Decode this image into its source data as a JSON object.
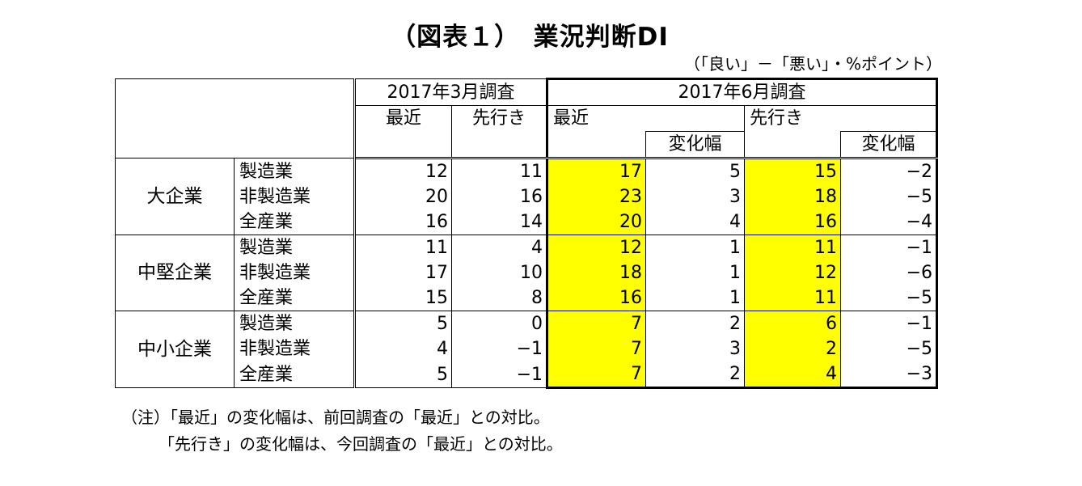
{
  "title": "（図表１）　業況判断DI",
  "unit": "（「良い」－「悪い」・%ポイント）",
  "headers": {
    "period_march": "2017年3月調査",
    "period_june": "2017年6月調査",
    "recent": "最近",
    "outlook": "先行き",
    "change": "変化幅"
  },
  "groups": [
    {
      "name": "大企業",
      "rows": [
        {
          "industry": "製造業",
          "mar_recent": "12",
          "mar_outlook": "11",
          "jun_recent": "17",
          "jun_recent_change": "5",
          "jun_outlook": "15",
          "jun_outlook_change": "−2"
        },
        {
          "industry": "非製造業",
          "mar_recent": "20",
          "mar_outlook": "16",
          "jun_recent": "23",
          "jun_recent_change": "3",
          "jun_outlook": "18",
          "jun_outlook_change": "−5"
        },
        {
          "industry": "全産業",
          "mar_recent": "16",
          "mar_outlook": "14",
          "jun_recent": "20",
          "jun_recent_change": "4",
          "jun_outlook": "16",
          "jun_outlook_change": "−4"
        }
      ]
    },
    {
      "name": "中堅企業",
      "rows": [
        {
          "industry": "製造業",
          "mar_recent": "11",
          "mar_outlook": "4",
          "jun_recent": "12",
          "jun_recent_change": "1",
          "jun_outlook": "11",
          "jun_outlook_change": "−1"
        },
        {
          "industry": "非製造業",
          "mar_recent": "17",
          "mar_outlook": "10",
          "jun_recent": "18",
          "jun_recent_change": "1",
          "jun_outlook": "12",
          "jun_outlook_change": "−6"
        },
        {
          "industry": "全産業",
          "mar_recent": "15",
          "mar_outlook": "8",
          "jun_recent": "16",
          "jun_recent_change": "1",
          "jun_outlook": "11",
          "jun_outlook_change": "−5"
        }
      ]
    },
    {
      "name": "中小企業",
      "rows": [
        {
          "industry": "製造業",
          "mar_recent": "5",
          "mar_outlook": "0",
          "jun_recent": "7",
          "jun_recent_change": "2",
          "jun_outlook": "6",
          "jun_outlook_change": "−1"
        },
        {
          "industry": "非製造業",
          "mar_recent": "4",
          "mar_outlook": "−1",
          "jun_recent": "7",
          "jun_recent_change": "3",
          "jun_outlook": "2",
          "jun_outlook_change": "−5"
        },
        {
          "industry": "全産業",
          "mar_recent": "5",
          "mar_outlook": "−1",
          "jun_recent": "7",
          "jun_recent_change": "2",
          "jun_outlook": "4",
          "jun_outlook_change": "−3"
        }
      ]
    }
  ],
  "notes": [
    "（注）「最近」の変化幅は、前回調査の「最近」との対比。",
    "「先行き」の変化幅は、今回調査の「最近」との対比。"
  ],
  "colors": {
    "highlight": "#ffff00",
    "border": "#000000"
  }
}
